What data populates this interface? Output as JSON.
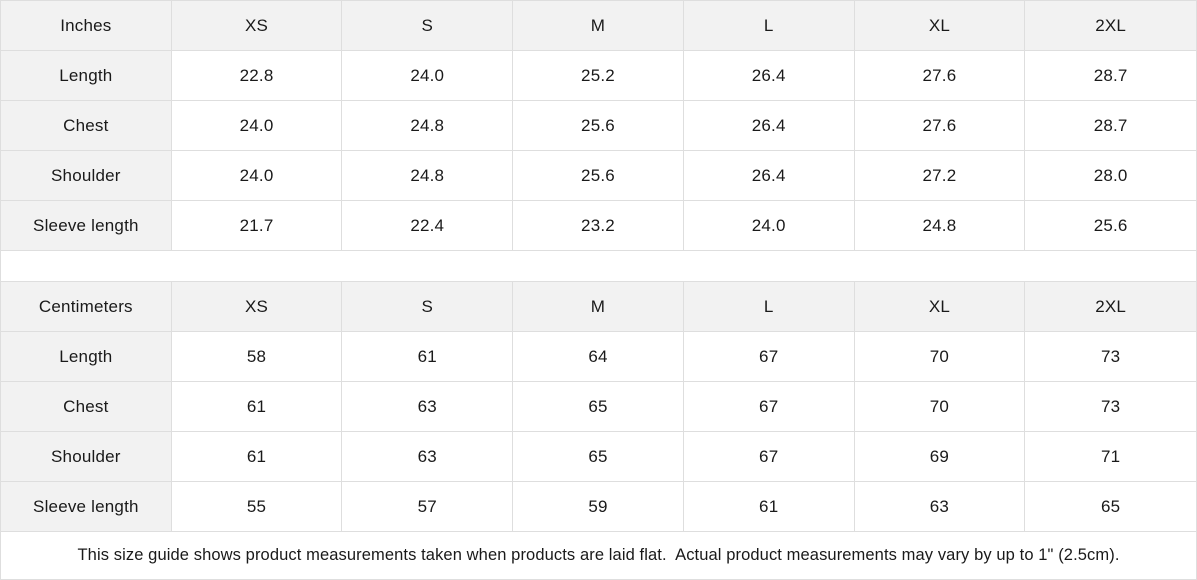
{
  "colors": {
    "shaded_cell_bg": "#f2f2f2",
    "grid_border": "#dedede",
    "text": "#1a1a1a",
    "cell_bg": "#ffffff"
  },
  "tables": [
    {
      "unit_label": "Inches",
      "columns": [
        "XS",
        "S",
        "M",
        "L",
        "XL",
        "2XL"
      ],
      "rows": [
        {
          "label": "Length",
          "values": [
            "22.8",
            "24.0",
            "25.2",
            "26.4",
            "27.6",
            "28.7"
          ]
        },
        {
          "label": "Chest",
          "values": [
            "24.0",
            "24.8",
            "25.6",
            "26.4",
            "27.6",
            "28.7"
          ]
        },
        {
          "label": "Shoulder",
          "values": [
            "24.0",
            "24.8",
            "25.6",
            "26.4",
            "27.2",
            "28.0"
          ]
        },
        {
          "label": "Sleeve length",
          "values": [
            "21.7",
            "22.4",
            "23.2",
            "24.0",
            "24.8",
            "25.6"
          ]
        }
      ]
    },
    {
      "unit_label": "Centimeters",
      "columns": [
        "XS",
        "S",
        "M",
        "L",
        "XL",
        "2XL"
      ],
      "rows": [
        {
          "label": "Length",
          "values": [
            "58",
            "61",
            "64",
            "67",
            "70",
            "73"
          ]
        },
        {
          "label": "Chest",
          "values": [
            "61",
            "63",
            "65",
            "67",
            "70",
            "73"
          ]
        },
        {
          "label": "Shoulder",
          "values": [
            "61",
            "63",
            "65",
            "67",
            "69",
            "71"
          ]
        },
        {
          "label": "Sleeve length",
          "values": [
            "55",
            "57",
            "59",
            "61",
            "63",
            "65"
          ]
        }
      ]
    }
  ],
  "footer": {
    "note": "This size guide shows product measurements taken when products are laid flat.  Actual product measurements may vary by up to 1\" (2.5cm)."
  },
  "chart_data": [
    {
      "type": "table",
      "title": "Inches",
      "columns": [
        "XS",
        "S",
        "M",
        "L",
        "XL",
        "2XL"
      ],
      "row_labels": [
        "Length",
        "Chest",
        "Shoulder",
        "Sleeve length"
      ],
      "values": [
        [
          22.8,
          24.0,
          25.2,
          26.4,
          27.6,
          28.7
        ],
        [
          24.0,
          24.8,
          25.6,
          26.4,
          27.6,
          28.7
        ],
        [
          24.0,
          24.8,
          25.6,
          26.4,
          27.2,
          28.0
        ],
        [
          21.7,
          22.4,
          23.2,
          24.0,
          24.8,
          25.6
        ]
      ]
    },
    {
      "type": "table",
      "title": "Centimeters",
      "columns": [
        "XS",
        "S",
        "M",
        "L",
        "XL",
        "2XL"
      ],
      "row_labels": [
        "Length",
        "Chest",
        "Shoulder",
        "Sleeve length"
      ],
      "values": [
        [
          58,
          61,
          64,
          67,
          70,
          73
        ],
        [
          61,
          63,
          65,
          67,
          70,
          73
        ],
        [
          61,
          63,
          65,
          67,
          69,
          71
        ],
        [
          55,
          57,
          59,
          61,
          63,
          65
        ]
      ]
    }
  ]
}
